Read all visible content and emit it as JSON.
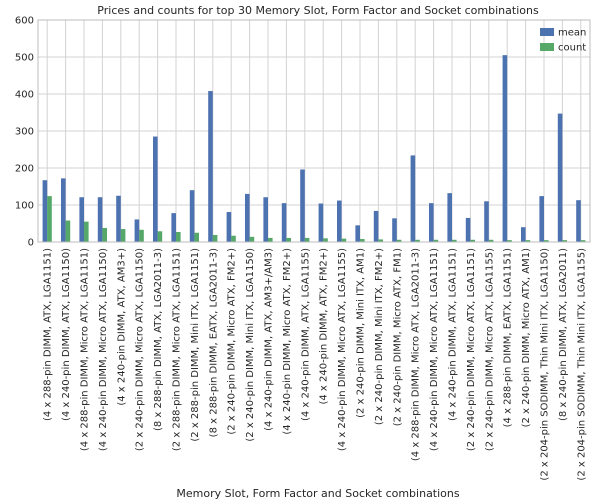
{
  "chart_data": {
    "type": "bar",
    "title": "Prices and counts for top 30 Memory Slot, Form Factor and Socket combinations",
    "xlabel": "Memory Slot, Form Factor and Socket combinations",
    "ylabel": "",
    "ylim": [
      0,
      600
    ],
    "yticks": [
      0,
      100,
      200,
      300,
      400,
      500,
      600
    ],
    "grid": true,
    "legend_position": "top-right",
    "categories": [
      "(4 x 288-pin DIMM, ATX, LGA1151)",
      "(4 x 240-pin DIMM, ATX, LGA1150)",
      "(4 x 288-pin DIMM, Micro ATX, LGA1151)",
      "(4 x 240-pin DIMM, Micro ATX, LGA1150)",
      "(4 x 240-pin DIMM, ATX, AM3+)",
      "(2 x 240-pin DIMM, Micro ATX, LGA1150)",
      "(8 x 288-pin DIMM, ATX, LGA2011-3)",
      "(2 x 288-pin DIMM, Micro ATX, LGA1151)",
      "(2 x 288-pin DIMM, Mini ITX, LGA1151)",
      "(8 x 288-pin DIMM, EATX, LGA2011-3)",
      "(2 x 240-pin DIMM, Micro ATX, FM2+)",
      "(2 x 240-pin DIMM, Mini ITX, LGA1150)",
      "(4 x 240-pin DIMM, ATX, AM3+/AM3)",
      "(4 x 240-pin DIMM, Micro ATX, FM2+)",
      "(4 x 240-pin DIMM, ATX, LGA1155)",
      "(4 x 240-pin DIMM, ATX, FM2+)",
      "(4 x 240-pin DIMM, Micro ATX, LGA1155)",
      "(2 x 240-pin DIMM, Mini ITX, AM1)",
      "(2 x 240-pin DIMM, Mini ITX, FM2+)",
      "(2 x 240-pin DIMM, Micro ATX, FM1)",
      "(4 x 288-pin DIMM, Micro ATX, LGA2011-3)",
      "(4 x 240-pin DIMM, Micro ATX, LGA1151)",
      "(4 x 240-pin DIMM, ATX, LGA1151)",
      "(2 x 240-pin DIMM, Micro ATX, LGA1151)",
      "(2 x 240-pin DIMM, Micro ATX, LGA1155)",
      "(4 x 288-pin DIMM, EATX, LGA1151)",
      "(2 x 240-pin DIMM, Micro ATX, AM1)",
      "(2 x 204-pin SODIMM, Thin Mini ITX, LGA1150)",
      "(8 x 240-pin DIMM, ATX, LGA2011)",
      "(2 x 204-pin SODIMM, Thin Mini ITX, LGA1155)"
    ],
    "series": [
      {
        "name": "mean",
        "color": "#4c72b0",
        "values": [
          167,
          172,
          121,
          121,
          125,
          61,
          285,
          78,
          140,
          408,
          81,
          130,
          121,
          105,
          196,
          104,
          112,
          45,
          84,
          64,
          234,
          105,
          132,
          65,
          110,
          505,
          40,
          124,
          347,
          113
        ]
      },
      {
        "name": "count",
        "color": "#55a868",
        "values": [
          124,
          58,
          55,
          38,
          35,
          33,
          29,
          27,
          25,
          19,
          17,
          14,
          11,
          11,
          11,
          10,
          9,
          8,
          7,
          6,
          6,
          6,
          6,
          6,
          6,
          5,
          5,
          5,
          5,
          5
        ]
      }
    ]
  }
}
